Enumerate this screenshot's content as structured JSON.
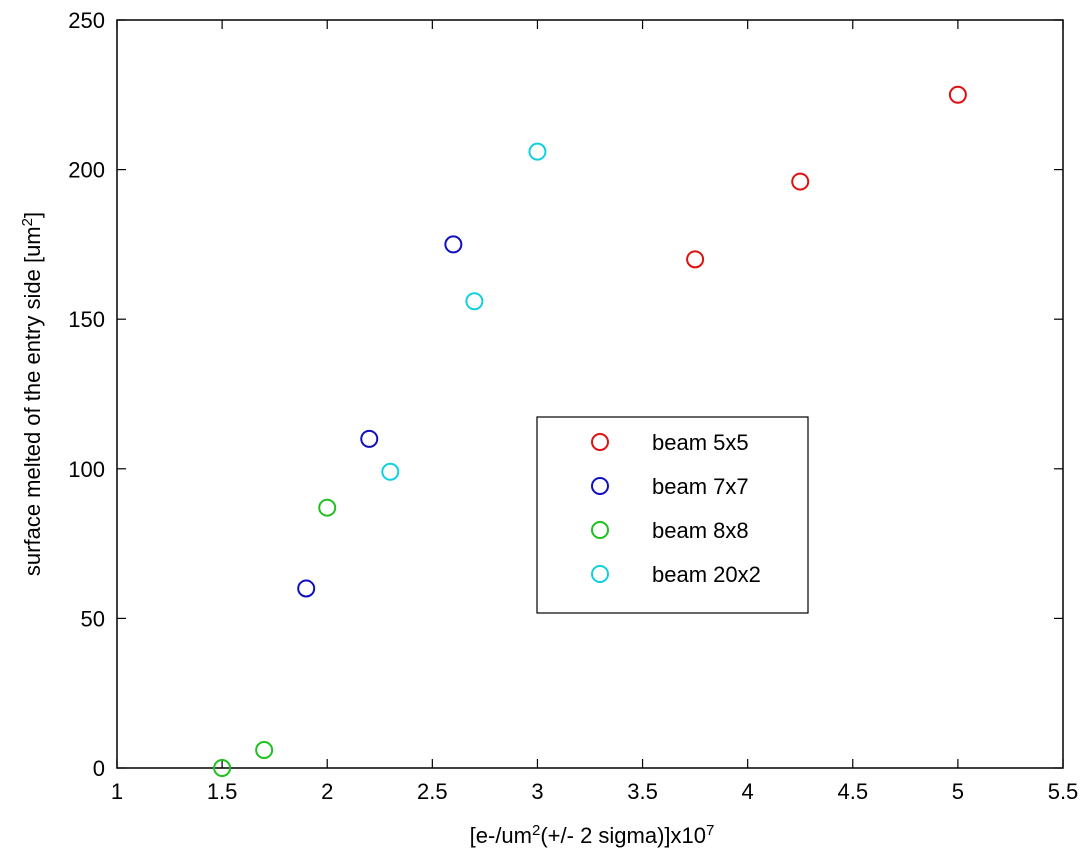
{
  "chart_data": {
    "type": "scatter",
    "xlabel_prefix": "[e-/um",
    "xlabel_sup": "2",
    "xlabel_mid": "(+/- 2 sigma)]x10",
    "xlabel_sup2": "7",
    "ylabel_prefix": "surface melted of the entry side [um",
    "ylabel_sup": "2",
    "ylabel_suffix": "]",
    "xlim": [
      1,
      5.5
    ],
    "ylim": [
      0,
      250
    ],
    "xticks": [
      1,
      1.5,
      2,
      2.5,
      3,
      3.5,
      4,
      4.5,
      5,
      5.5
    ],
    "xtick_labels": [
      "1",
      "1.5",
      "2",
      "2.5",
      "3",
      "3.5",
      "4",
      "4.5",
      "5",
      "5.5"
    ],
    "yticks": [
      0,
      50,
      100,
      150,
      200,
      250
    ],
    "ytick_labels": [
      "0",
      "50",
      "100",
      "150",
      "200",
      "250"
    ],
    "grid": false,
    "legend_position": "center-right",
    "marker": "circle-open",
    "series": [
      {
        "name": "beam 5x5",
        "color": "#e01010",
        "points": [
          [
            3.75,
            170
          ],
          [
            4.25,
            196
          ],
          [
            5.0,
            225
          ]
        ]
      },
      {
        "name": "beam 7x7",
        "color": "#1010c0",
        "points": [
          [
            1.9,
            60
          ],
          [
            2.2,
            110
          ],
          [
            2.6,
            175
          ]
        ]
      },
      {
        "name": "beam 8x8",
        "color": "#20c020",
        "points": [
          [
            1.5,
            0
          ],
          [
            1.7,
            6
          ],
          [
            2.0,
            87
          ]
        ]
      },
      {
        "name": "beam 20x2",
        "color": "#10d0e0",
        "points": [
          [
            2.3,
            99
          ],
          [
            2.7,
            156
          ],
          [
            3.0,
            206
          ]
        ]
      }
    ]
  }
}
